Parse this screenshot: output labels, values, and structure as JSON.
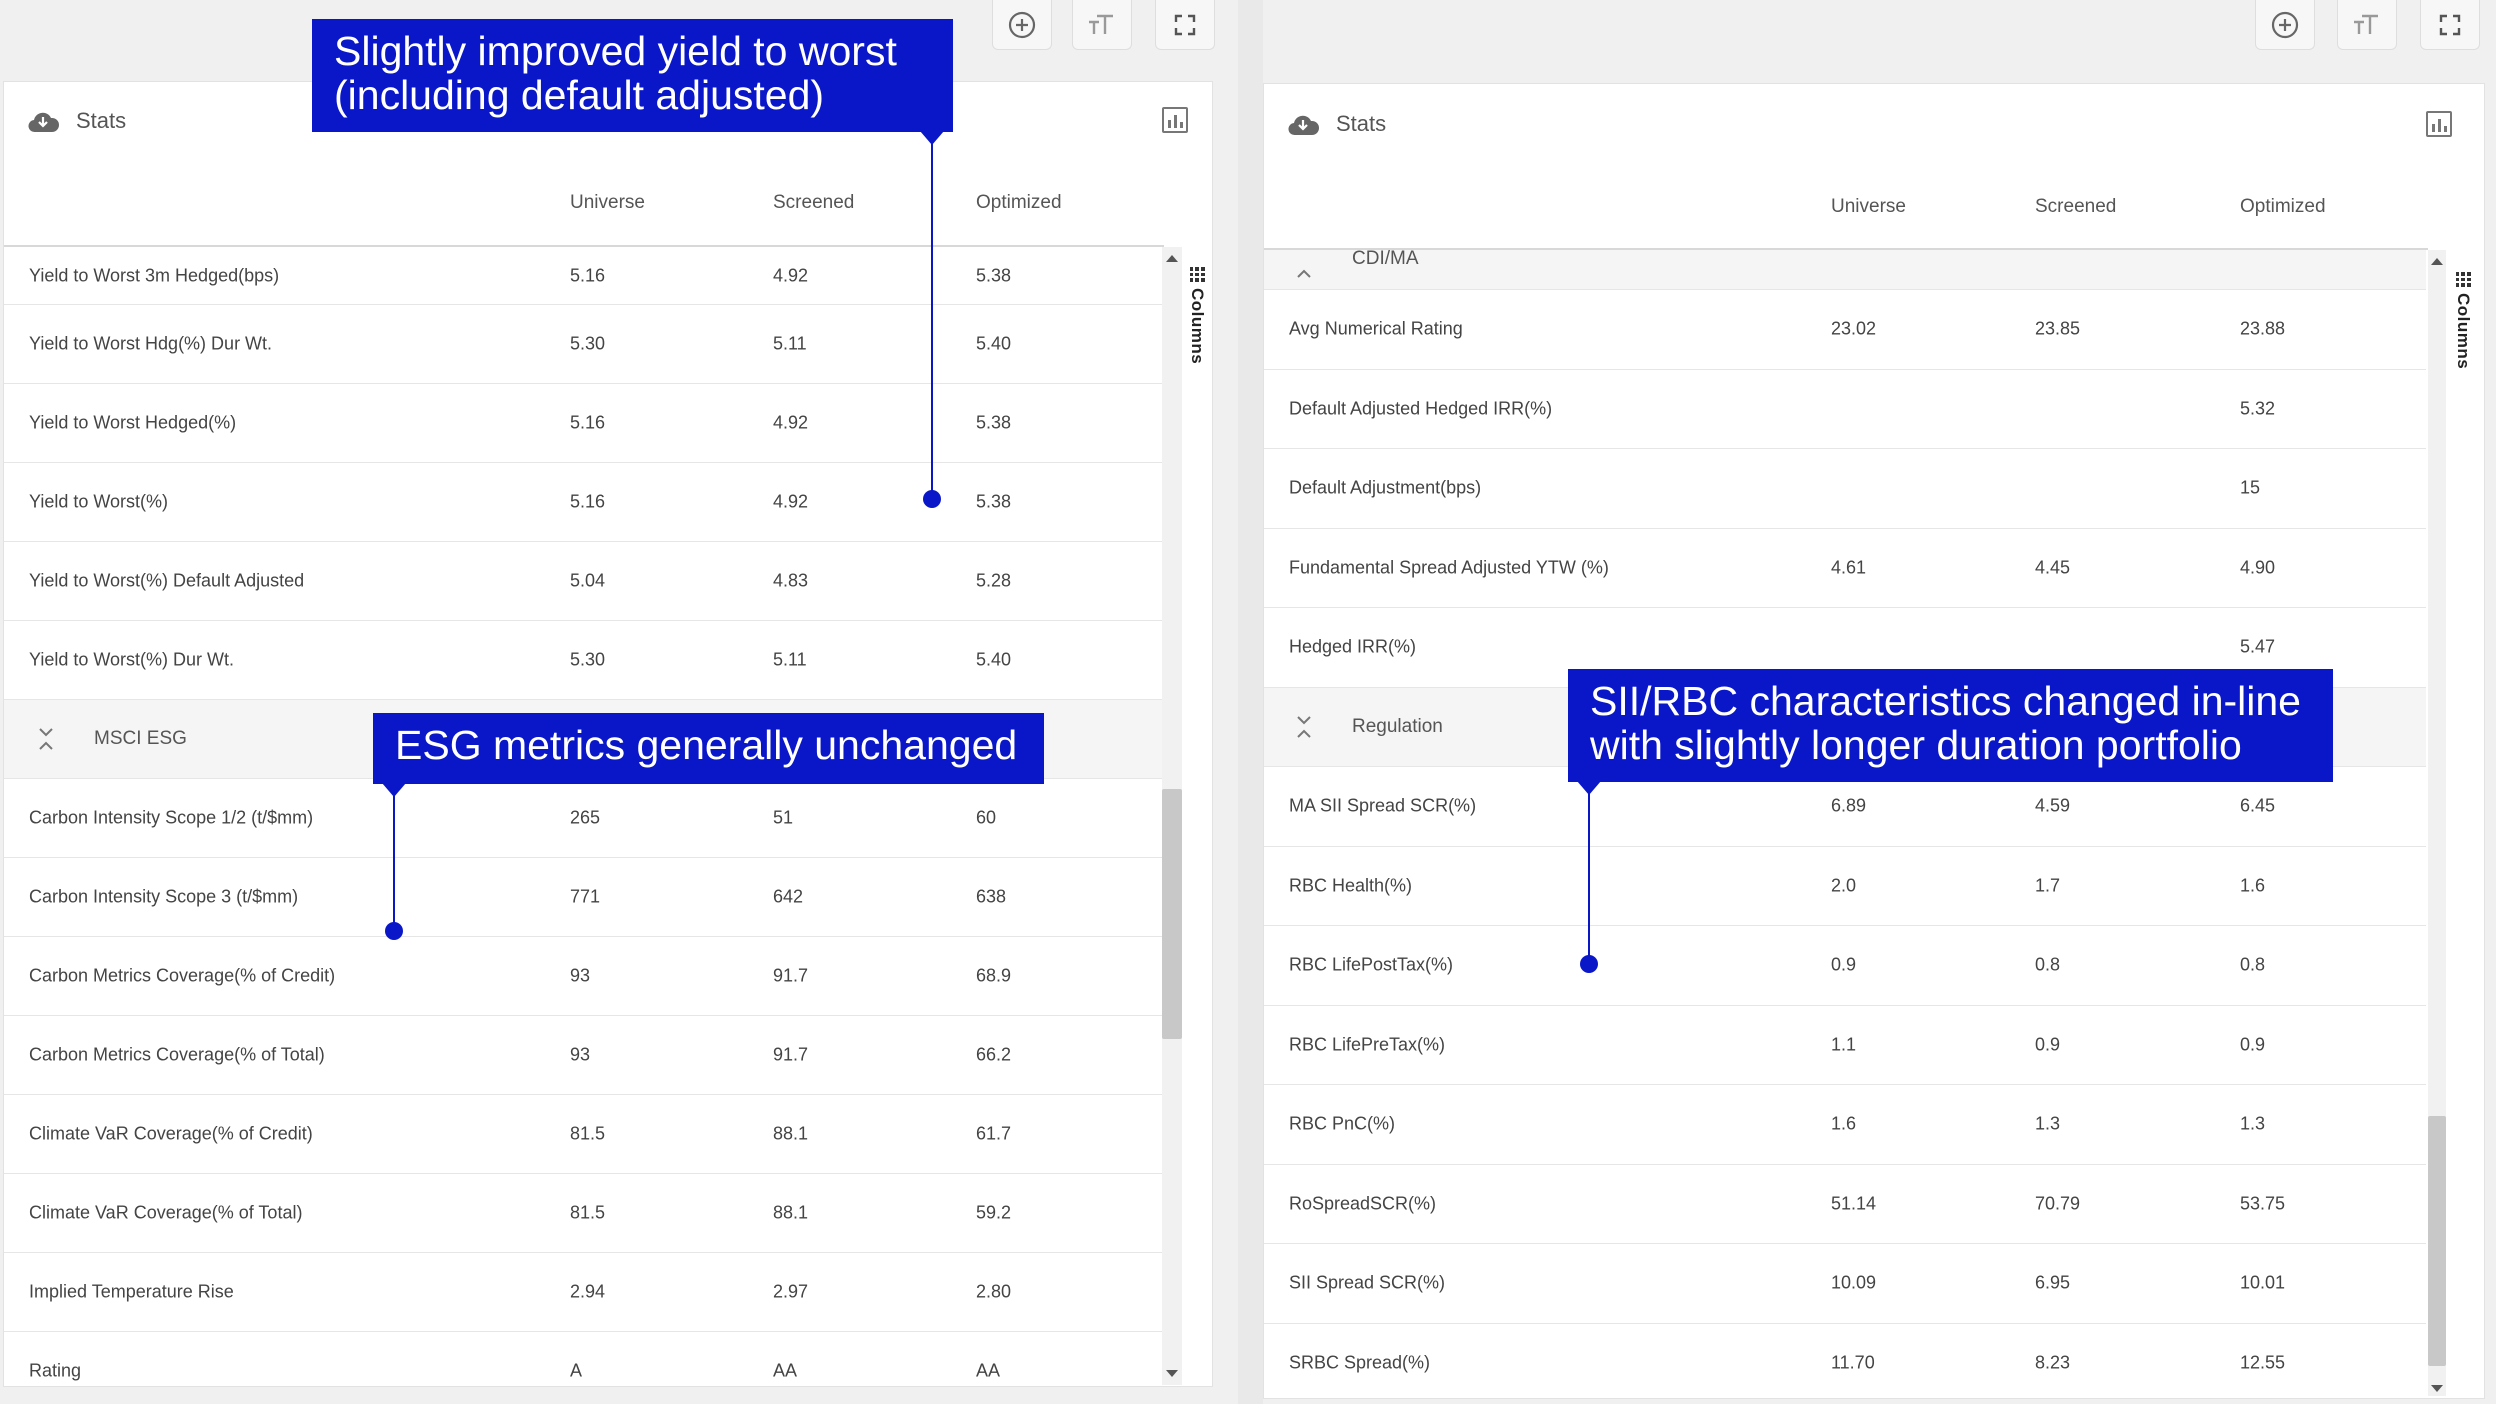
{
  "left": {
    "title": "Stats",
    "icon": "cloud-download-icon",
    "columns_label": "Columns",
    "headers": [
      "Universe",
      "Screened",
      "Optimized"
    ],
    "rows": [
      {
        "type": "row",
        "label": "Yield to Worst 3m Hedged(bps)",
        "universe": "5.16",
        "screened": "4.92",
        "optimized": "5.38"
      },
      {
        "type": "row",
        "label": "Yield to Worst Hdg(%) Dur Wt.",
        "universe": "5.30",
        "screened": "5.11",
        "optimized": "5.40"
      },
      {
        "type": "row",
        "label": "Yield to Worst Hedged(%)",
        "universe": "5.16",
        "screened": "4.92",
        "optimized": "5.38"
      },
      {
        "type": "row",
        "label": "Yield to Worst(%)",
        "universe": "5.16",
        "screened": "4.92",
        "optimized": "5.38"
      },
      {
        "type": "row",
        "label": "Yield to Worst(%) Default Adjusted",
        "universe": "5.04",
        "screened": "4.83",
        "optimized": "5.28"
      },
      {
        "type": "row",
        "label": "Yield to Worst(%) Dur Wt.",
        "universe": "5.30",
        "screened": "5.11",
        "optimized": "5.40"
      },
      {
        "type": "group",
        "label": "MSCI ESG"
      },
      {
        "type": "row",
        "label": "Carbon Intensity Scope 1/2 (t/$mm)",
        "universe": "265",
        "screened": "51",
        "optimized": "60"
      },
      {
        "type": "row",
        "label": "Carbon Intensity Scope 3 (t/$mm)",
        "universe": "771",
        "screened": "642",
        "optimized": "638"
      },
      {
        "type": "row",
        "label": "Carbon Metrics Coverage(% of Credit)",
        "universe": "93",
        "screened": "91.7",
        "optimized": "68.9"
      },
      {
        "type": "row",
        "label": "Carbon Metrics Coverage(% of Total)",
        "universe": "93",
        "screened": "91.7",
        "optimized": "66.2"
      },
      {
        "type": "row",
        "label": "Climate VaR Coverage(% of Credit)",
        "universe": "81.5",
        "screened": "88.1",
        "optimized": "61.7"
      },
      {
        "type": "row",
        "label": "Climate VaR Coverage(% of Total)",
        "universe": "81.5",
        "screened": "88.1",
        "optimized": "59.2"
      },
      {
        "type": "row",
        "label": "Implied Temperature Rise",
        "universe": "2.94",
        "screened": "2.97",
        "optimized": "2.80"
      },
      {
        "type": "row",
        "label": "Rating",
        "universe": "A",
        "screened": "AA",
        "optimized": "AA"
      }
    ]
  },
  "right": {
    "title": "Stats",
    "icon": "cloud-download-icon",
    "columns_label": "Columns",
    "headers": [
      "Universe",
      "Screened",
      "Optimized"
    ],
    "partial_group": "CDI/MA",
    "rows": [
      {
        "type": "row",
        "label": "Avg Numerical Rating",
        "universe": "23.02",
        "screened": "23.85",
        "optimized": "23.88"
      },
      {
        "type": "row",
        "label": "Default Adjusted Hedged IRR(%)",
        "universe": "",
        "screened": "",
        "optimized": "5.32"
      },
      {
        "type": "row",
        "label": "Default Adjustment(bps)",
        "universe": "",
        "screened": "",
        "optimized": "15"
      },
      {
        "type": "row",
        "label": "Fundamental Spread Adjusted YTW (%)",
        "universe": "4.61",
        "screened": "4.45",
        "optimized": "4.90"
      },
      {
        "type": "row",
        "label": "Hedged IRR(%)",
        "universe": "",
        "screened": "",
        "optimized": "5.47"
      },
      {
        "type": "group",
        "label": "Regulation"
      },
      {
        "type": "row",
        "label": "MA SII Spread SCR(%)",
        "universe": "6.89",
        "screened": "4.59",
        "optimized": "6.45"
      },
      {
        "type": "row",
        "label": "RBC Health(%)",
        "universe": "2.0",
        "screened": "1.7",
        "optimized": "1.6"
      },
      {
        "type": "row",
        "label": "RBC LifePostTax(%)",
        "universe": "0.9",
        "screened": "0.8",
        "optimized": "0.8"
      },
      {
        "type": "row",
        "label": "RBC LifePreTax(%)",
        "universe": "1.1",
        "screened": "0.9",
        "optimized": "0.9"
      },
      {
        "type": "row",
        "label": "RBC PnC(%)",
        "universe": "1.6",
        "screened": "1.3",
        "optimized": "1.3"
      },
      {
        "type": "row",
        "label": "RoSpreadSCR(%)",
        "universe": "51.14",
        "screened": "70.79",
        "optimized": "53.75"
      },
      {
        "type": "row",
        "label": "SII Spread SCR(%)",
        "universe": "10.09",
        "screened": "6.95",
        "optimized": "10.01"
      },
      {
        "type": "row",
        "label": "SRBC Spread(%)",
        "universe": "11.70",
        "screened": "8.23",
        "optimized": "12.55"
      }
    ]
  },
  "callouts": {
    "yield": [
      "Slightly improved yield to worst",
      "(including default adjusted)"
    ],
    "esg": [
      "ESG metrics generally unchanged"
    ],
    "regulation": [
      "SII/RBC characteristics changed in-line",
      "with slightly longer duration portfolio"
    ]
  },
  "colors": {
    "callout": "#0a17c9"
  }
}
